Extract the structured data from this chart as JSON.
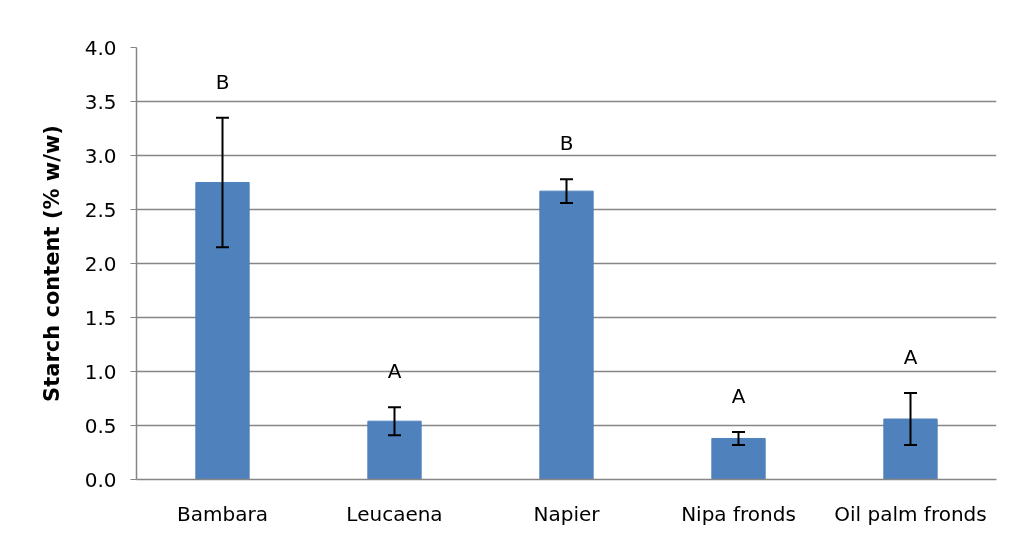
{
  "chart_data": {
    "type": "bar",
    "ylabel": "Starch content (% w/w)",
    "categories": [
      "Bambara",
      "Leucaena",
      "Napier",
      "Nipa fronds",
      "Oil palm fronds"
    ],
    "values": [
      2.75,
      0.54,
      2.67,
      0.38,
      0.56
    ],
    "errors": [
      0.6,
      0.13,
      0.11,
      0.06,
      0.24
    ],
    "color": "#4f81bd",
    "ylim": [
      0,
      4
    ],
    "yticks": [
      {
        "value": 0,
        "label": "0.0"
      },
      {
        "value": 0.5,
        "label": "0.5"
      },
      {
        "value": 1,
        "label": "1.0"
      },
      {
        "value": 1.5,
        "label": "1.5"
      },
      {
        "value": 2,
        "label": "2.0"
      },
      {
        "value": 2.5,
        "label": "2.5"
      },
      {
        "value": 3,
        "label": "3.0"
      },
      {
        "value": 3.5,
        "label": "3.5"
      },
      {
        "value": 4,
        "label": "4.0"
      }
    ],
    "grid": "y",
    "annotations": [
      "B",
      "A",
      "B",
      "A",
      "A"
    ]
  }
}
